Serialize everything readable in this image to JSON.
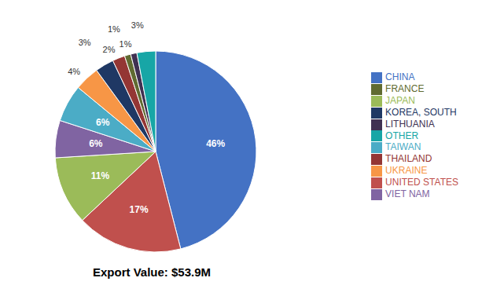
{
  "chart_data": {
    "type": "pie",
    "categories": [
      "CHINA",
      "UNITED STATES",
      "JAPAN",
      "VIET NAM",
      "TAIWAN",
      "UKRAINE",
      "KOREA, SOUTH",
      "THAILAND",
      "FRANCE",
      "LITHUANIA",
      "OTHER"
    ],
    "values": [
      46,
      17,
      11,
      6,
      6,
      4,
      3,
      2,
      1,
      1,
      3
    ],
    "value_labels": [
      "46%",
      "17%",
      "11%",
      "6%",
      "6%",
      "4%",
      "3%",
      "2%",
      "1%",
      "1%",
      "3%"
    ],
    "colors": [
      "#4472c4",
      "#c0504d",
      "#9bbb59",
      "#8064a2",
      "#4bacc6",
      "#f79646",
      "#1f3864",
      "#943634",
      "#606b31",
      "#403152",
      "#17a6a6"
    ],
    "data_labels": true,
    "legend": "right",
    "annotation": "Export Value: $53.9M"
  }
}
